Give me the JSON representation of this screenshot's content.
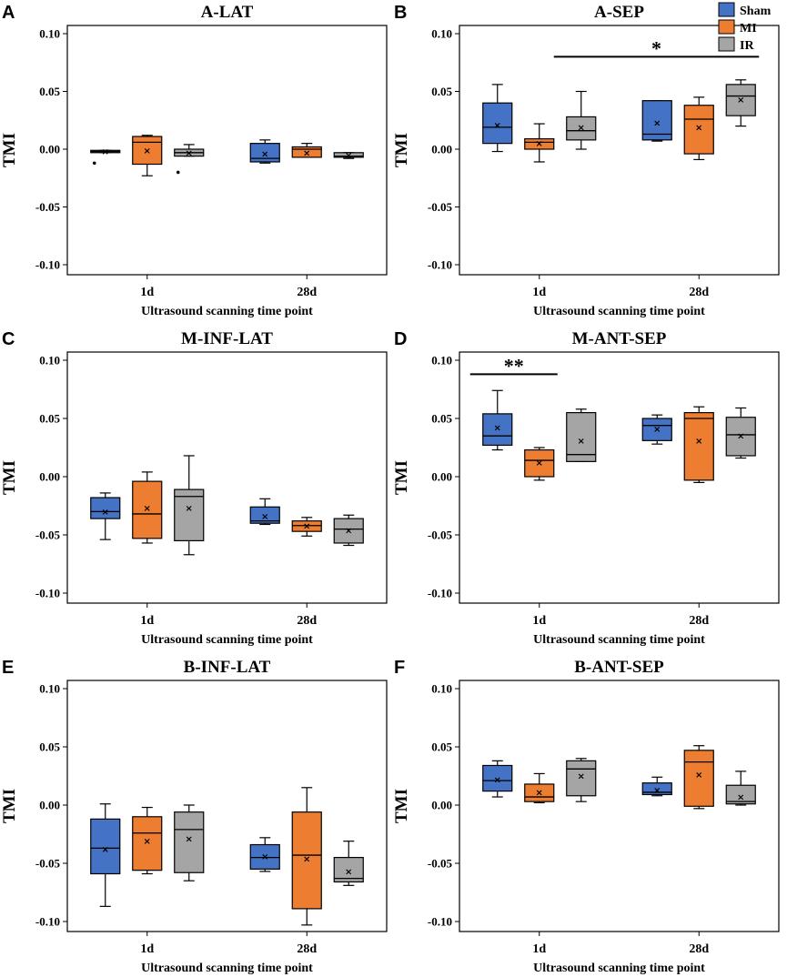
{
  "colors": {
    "Sham": "#4472C4",
    "MI": "#ED7D31",
    "IR": "#A5A5A5"
  },
  "legend": {
    "items": [
      "Sham",
      "MI",
      "IR"
    ]
  },
  "chart_data": [
    {
      "panel": "A",
      "title": "A-LAT",
      "type": "boxplot",
      "categories": [
        "1d",
        "28d"
      ],
      "xlabel": "Ultrasound scanning time point",
      "ylabel": "TMI",
      "ylim": [
        -0.1,
        0.1
      ],
      "yticks": [
        "0.10",
        "0.05",
        "0.00",
        "-0.05",
        "-0.10"
      ],
      "series": [
        {
          "name": "Sham",
          "boxes": [
            {
              "min": -0.003,
              "q1": -0.003,
              "median": -0.002,
              "q3": -0.001,
              "max": -0.001,
              "mean": -0.002,
              "outliers": [
                -0.012
              ]
            },
            {
              "min": -0.012,
              "q1": -0.011,
              "median": -0.008,
              "q3": 0.005,
              "max": 0.008,
              "mean": -0.004,
              "outliers": []
            }
          ]
        },
        {
          "name": "MI",
          "boxes": [
            {
              "min": -0.023,
              "q1": -0.013,
              "median": 0.006,
              "q3": 0.011,
              "max": 0.012,
              "mean": -0.001,
              "outliers": []
            },
            {
              "min": -0.007,
              "q1": -0.007,
              "median": 0.0,
              "q3": 0.002,
              "max": 0.005,
              "mean": -0.003,
              "outliers": []
            }
          ]
        },
        {
          "name": "IR",
          "boxes": [
            {
              "min": -0.006,
              "q1": -0.006,
              "median": -0.003,
              "q3": 0.0,
              "max": 0.004,
              "mean": -0.003,
              "outliers": [
                -0.02
              ]
            },
            {
              "min": -0.008,
              "q1": -0.007,
              "median": -0.006,
              "q3": -0.003,
              "max": -0.003,
              "mean": -0.005,
              "outliers": []
            }
          ]
        }
      ],
      "annotations": []
    },
    {
      "panel": "B",
      "title": "A-SEP",
      "type": "boxplot",
      "categories": [
        "1d",
        "28d"
      ],
      "xlabel": "Ultrasound scanning time point",
      "ylabel": "TMI",
      "ylim": [
        -0.1,
        0.1
      ],
      "yticks": [
        "0.10",
        "0.05",
        "0.00",
        "-0.05",
        "-0.10"
      ],
      "series": [
        {
          "name": "Sham",
          "boxes": [
            {
              "min": -0.002,
              "q1": 0.005,
              "median": 0.019,
              "q3": 0.04,
              "max": 0.056,
              "mean": 0.021,
              "outliers": []
            },
            {
              "min": 0.007,
              "q1": 0.008,
              "median": 0.013,
              "q3": 0.042,
              "max": 0.042,
              "mean": 0.023,
              "outliers": []
            }
          ]
        },
        {
          "name": "MI",
          "boxes": [
            {
              "min": -0.011,
              "q1": 0.0,
              "median": 0.006,
              "q3": 0.009,
              "max": 0.022,
              "mean": 0.005,
              "outliers": []
            },
            {
              "min": -0.009,
              "q1": -0.004,
              "median": 0.026,
              "q3": 0.038,
              "max": 0.045,
              "mean": 0.019,
              "outliers": []
            }
          ]
        },
        {
          "name": "IR",
          "boxes": [
            {
              "min": 0.0,
              "q1": 0.008,
              "median": 0.016,
              "q3": 0.028,
              "max": 0.05,
              "mean": 0.019,
              "outliers": []
            },
            {
              "min": 0.02,
              "q1": 0.029,
              "median": 0.046,
              "q3": 0.056,
              "max": 0.06,
              "mean": 0.043,
              "outliers": []
            }
          ]
        }
      ],
      "annotations": [
        {
          "text": "*",
          "from": [
            0,
            2
          ],
          "to": [
            1,
            2
          ],
          "y": 0.08
        }
      ]
    },
    {
      "panel": "C",
      "title": "M-INF-LAT",
      "type": "boxplot",
      "categories": [
        "1d",
        "28d"
      ],
      "xlabel": "Ultrasound scanning time point",
      "ylabel": "TMI",
      "ylim": [
        -0.1,
        0.1
      ],
      "yticks": [
        "0.10",
        "0.05",
        "0.00",
        "-0.05",
        "-0.10"
      ],
      "series": [
        {
          "name": "Sham",
          "boxes": [
            {
              "min": -0.054,
              "q1": -0.036,
              "median": -0.03,
              "q3": -0.018,
              "max": -0.014,
              "mean": -0.03,
              "outliers": []
            },
            {
              "min": -0.041,
              "q1": -0.04,
              "median": -0.038,
              "q3": -0.026,
              "max": -0.019,
              "mean": -0.034,
              "outliers": []
            }
          ]
        },
        {
          "name": "MI",
          "boxes": [
            {
              "min": -0.057,
              "q1": -0.053,
              "median": -0.032,
              "q3": -0.004,
              "max": 0.004,
              "mean": -0.027,
              "outliers": []
            },
            {
              "min": -0.051,
              "q1": -0.047,
              "median": -0.042,
              "q3": -0.038,
              "max": -0.035,
              "mean": -0.042,
              "outliers": []
            }
          ]
        },
        {
          "name": "IR",
          "boxes": [
            {
              "min": -0.067,
              "q1": -0.055,
              "median": -0.017,
              "q3": -0.011,
              "max": 0.018,
              "mean": -0.027,
              "outliers": []
            },
            {
              "min": -0.059,
              "q1": -0.057,
              "median": -0.045,
              "q3": -0.036,
              "max": -0.033,
              "mean": -0.046,
              "outliers": []
            }
          ]
        }
      ],
      "annotations": []
    },
    {
      "panel": "D",
      "title": "M-ANT-SEP",
      "type": "boxplot",
      "categories": [
        "1d",
        "28d"
      ],
      "xlabel": "Ultrasound scanning time point",
      "ylabel": "TMI",
      "ylim": [
        -0.1,
        0.1
      ],
      "yticks": [
        "0.10",
        "0.05",
        "0.00",
        "-0.05",
        "-0.10"
      ],
      "series": [
        {
          "name": "Sham",
          "boxes": [
            {
              "min": 0.023,
              "q1": 0.027,
              "median": 0.035,
              "q3": 0.054,
              "max": 0.074,
              "mean": 0.042,
              "outliers": []
            },
            {
              "min": 0.028,
              "q1": 0.031,
              "median": 0.044,
              "q3": 0.05,
              "max": 0.053,
              "mean": 0.041,
              "outliers": []
            }
          ]
        },
        {
          "name": "MI",
          "boxes": [
            {
              "min": -0.003,
              "q1": 0.0,
              "median": 0.014,
              "q3": 0.023,
              "max": 0.025,
              "mean": 0.012,
              "outliers": []
            },
            {
              "min": -0.005,
              "q1": -0.003,
              "median": 0.05,
              "q3": 0.055,
              "max": 0.06,
              "mean": 0.031,
              "outliers": []
            }
          ]
        },
        {
          "name": "IR",
          "boxes": [
            {
              "min": 0.013,
              "q1": 0.013,
              "median": 0.019,
              "q3": 0.055,
              "max": 0.058,
              "mean": 0.031,
              "outliers": []
            },
            {
              "min": 0.016,
              "q1": 0.018,
              "median": 0.036,
              "q3": 0.051,
              "max": 0.059,
              "mean": 0.035,
              "outliers": []
            }
          ]
        }
      ],
      "annotations": [
        {
          "text": "**",
          "from": [
            0,
            0
          ],
          "to": [
            0,
            1
          ],
          "y": 0.088
        }
      ]
    },
    {
      "panel": "E",
      "title": "B-INF-LAT",
      "type": "boxplot",
      "categories": [
        "1d",
        "28d"
      ],
      "xlabel": "Ultrasound scanning time point",
      "ylabel": "TMI",
      "ylim": [
        -0.1,
        0.1
      ],
      "yticks": [
        "0.10",
        "0.05",
        "0.00",
        "-0.05",
        "-0.10"
      ],
      "series": [
        {
          "name": "Sham",
          "boxes": [
            {
              "min": -0.087,
              "q1": -0.059,
              "median": -0.037,
              "q3": -0.012,
              "max": 0.001,
              "mean": -0.038,
              "outliers": []
            },
            {
              "min": -0.057,
              "q1": -0.055,
              "median": -0.045,
              "q3": -0.034,
              "max": -0.028,
              "mean": -0.044,
              "outliers": []
            }
          ]
        },
        {
          "name": "MI",
          "boxes": [
            {
              "min": -0.059,
              "q1": -0.056,
              "median": -0.024,
              "q3": -0.01,
              "max": -0.002,
              "mean": -0.031,
              "outliers": []
            },
            {
              "min": -0.103,
              "q1": -0.089,
              "median": -0.043,
              "q3": -0.006,
              "max": 0.015,
              "mean": -0.046,
              "outliers": []
            }
          ]
        },
        {
          "name": "IR",
          "boxes": [
            {
              "min": -0.065,
              "q1": -0.058,
              "median": -0.021,
              "q3": -0.006,
              "max": 0.0,
              "mean": -0.029,
              "outliers": []
            },
            {
              "min": -0.069,
              "q1": -0.066,
              "median": -0.063,
              "q3": -0.045,
              "max": -0.031,
              "mean": -0.057,
              "outliers": []
            }
          ]
        }
      ],
      "annotations": []
    },
    {
      "panel": "F",
      "title": "B-ANT-SEP",
      "type": "boxplot",
      "categories": [
        "1d",
        "28d"
      ],
      "xlabel": "Ultrasound scanning time point",
      "ylabel": "TMI",
      "ylim": [
        -0.1,
        0.1
      ],
      "yticks": [
        "0.10",
        "0.05",
        "0.00",
        "-0.05",
        "-0.10"
      ],
      "series": [
        {
          "name": "Sham",
          "boxes": [
            {
              "min": 0.007,
              "q1": 0.012,
              "median": 0.021,
              "q3": 0.034,
              "max": 0.038,
              "mean": 0.022,
              "outliers": []
            },
            {
              "min": 0.008,
              "q1": 0.009,
              "median": 0.011,
              "q3": 0.019,
              "max": 0.024,
              "mean": 0.013,
              "outliers": []
            }
          ]
        },
        {
          "name": "MI",
          "boxes": [
            {
              "min": 0.002,
              "q1": 0.003,
              "median": 0.007,
              "q3": 0.018,
              "max": 0.027,
              "mean": 0.011,
              "outliers": []
            },
            {
              "min": -0.003,
              "q1": -0.001,
              "median": 0.037,
              "q3": 0.047,
              "max": 0.051,
              "mean": 0.026,
              "outliers": []
            }
          ]
        },
        {
          "name": "IR",
          "boxes": [
            {
              "min": 0.003,
              "q1": 0.008,
              "median": 0.031,
              "q3": 0.038,
              "max": 0.04,
              "mean": 0.025,
              "outliers": []
            },
            {
              "min": 0.0,
              "q1": 0.001,
              "median": 0.003,
              "q3": 0.017,
              "max": 0.029,
              "mean": 0.007,
              "outliers": []
            }
          ]
        }
      ],
      "annotations": []
    }
  ]
}
